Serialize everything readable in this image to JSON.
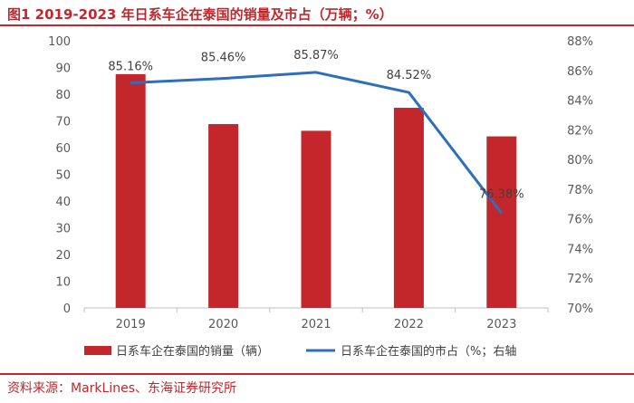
{
  "header": {
    "title": "图1  2019-2023 年日系车企在泰国的销量及市占（万辆；%）"
  },
  "footer": {
    "source": "资料来源：MarkLines、东海证券研究所"
  },
  "colors": {
    "accent_red": "#c0282d",
    "bar_red": "#c3272b",
    "line_blue": "#2e6fbd",
    "axis_text": "#595959",
    "label_text": "#404040"
  },
  "chart_data": {
    "type": "bar",
    "title": "2019-2023 年日系车企在泰国的销量及市占（万辆；%）",
    "categories": [
      "2019",
      "2020",
      "2021",
      "2022",
      "2023"
    ],
    "series": [
      {
        "name": "日系车企在泰国的销量（辆）",
        "type": "bar",
        "axis": "left",
        "values": [
          87.5,
          68.8,
          66.3,
          74.9,
          64.2
        ]
      },
      {
        "name": "日系车企在泰国的市占（%；右轴",
        "type": "line",
        "axis": "right",
        "values": [
          85.16,
          85.46,
          85.87,
          84.52,
          76.38
        ],
        "labels": [
          "85.16%",
          "85.46%",
          "85.87%",
          "84.52%",
          "76.38%"
        ]
      }
    ],
    "y_left": {
      "min": 0,
      "max": 100,
      "step": 10,
      "ticks": [
        "0",
        "10",
        "20",
        "30",
        "40",
        "50",
        "60",
        "70",
        "80",
        "90",
        "100"
      ]
    },
    "y_right": {
      "min": 70,
      "max": 88,
      "step": 2,
      "ticks": [
        "70%",
        "72%",
        "74%",
        "76%",
        "78%",
        "80%",
        "82%",
        "84%",
        "86%",
        "88%"
      ]
    },
    "grid": false,
    "legend_position": "bottom"
  }
}
